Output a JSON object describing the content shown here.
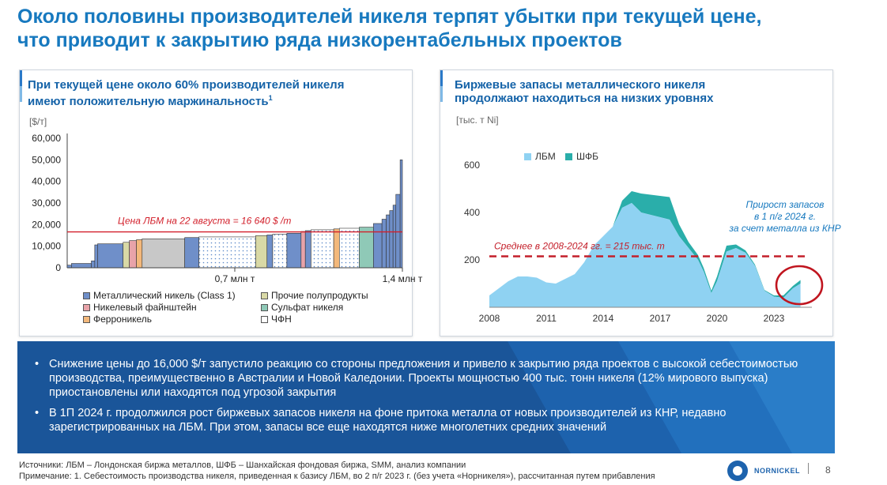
{
  "title": {
    "line1": "Около половины производителей никеля терпят убытки при текущей цене,",
    "line2": "что приводит к закрытию ряда низкорентабельных проектов"
  },
  "left_panel": {
    "title_line1": "При текущей цене около 60% производителей никеля",
    "title_line2": "имеют положительную маржинальность",
    "title_sup": "1",
    "unit": "[$/т]",
    "price_label": "Цена ЛБМ на 22 августа = 16 640 $ /т",
    "legend": [
      {
        "label": "Металлический никель (Class 1)",
        "color": "#6f8fc9"
      },
      {
        "label": "Прочие полупродукты",
        "color": "#d9d9a6"
      },
      {
        "label": "Никелевый файнштейн",
        "color": "#e8a3a9"
      },
      {
        "label": "Сульфат никеля",
        "color": "#8fc9b7"
      },
      {
        "label": "Ферроникель",
        "color": "#f3b87b"
      },
      {
        "label": "ЧФН",
        "color": "#ffffff"
      }
    ]
  },
  "right_panel": {
    "title_line1": "Биржевые запасы металлического никеля",
    "title_line2": "продолжают находиться на низких уровнях",
    "unit": "[тыс. т Ni]",
    "legend": [
      {
        "label": "ЛБМ",
        "color": "#8fd2f2"
      },
      {
        "label": "ШФБ",
        "color": "#2aaeaa"
      }
    ],
    "avg_label": "Среднее в 2008-2024 гг. = 215 тыс. т",
    "annotation": [
      "Прирост запасов",
      "в 1 п/г 2024 г.",
      "за счет металла из КНР"
    ]
  },
  "bullets": [
    "Снижение цены до 16,000 $/т запустило реакцию со стороны предложения и привело к закрытию ряда проектов с высокой себестоимостью производства, преимущественно в Австралии и Новой Каледонии. Проекты мощностью 400 тыс. тонн никеля (12% мирового выпуска) приостановлены или находятся под угрозой закрытия",
    "В 1П 2024 г. продолжился рост биржевых запасов никеля на фоне притока металла от новых производителей из КНР, недавно зарегистрированных на ЛБМ. При этом, запасы все еще находятся ниже многолетних средних значений"
  ],
  "footer": {
    "sources": "Источники: ЛБМ – Лондонская биржа металлов, ШФБ – Шанхайская фондовая биржа, SMM, анализ компании",
    "note": "Примечание: 1. Себестоимость производства никеля, приведенная к базису ЛБМ, во 2 п/г 2023 г. (без учета «Норникеля»), рассчитанная путем прибавления",
    "logo_text": "NORNICKEL",
    "page": "8"
  },
  "chart_data": [
    {
      "type": "bar",
      "subtype": "cost-curve",
      "ylim": [
        0,
        60000
      ],
      "yticks": [
        "0",
        "10,000",
        "20,000",
        "30,000",
        "40,000",
        "50,000",
        "60,000"
      ],
      "xlim_mt": [
        0,
        1.4
      ],
      "xticks": [
        {
          "v": 0.7,
          "label": "0,7 млн т"
        },
        {
          "v": 1.4,
          "label": "1,4 млн т"
        }
      ],
      "reference_line": {
        "value": 16640,
        "label": "Цена ЛБМ на 22 августа = 16 640 $ /т"
      },
      "segments": [
        {
          "w": 0.015,
          "v": 1200,
          "c": "#6f8fc9"
        },
        {
          "w": 0.07,
          "v": 2000,
          "c": "#6f8fc9"
        },
        {
          "w": 0.012,
          "v": 3200,
          "c": "#6f8fc9"
        },
        {
          "w": 0.01,
          "v": 10600,
          "c": "#6f8fc9"
        },
        {
          "w": 0.09,
          "v": 11100,
          "c": "#6f8fc9"
        },
        {
          "w": 0.022,
          "v": 11800,
          "c": "#d9d9a6"
        },
        {
          "w": 0.025,
          "v": 12600,
          "c": "#e8a3a9"
        },
        {
          "w": 0.02,
          "v": 13000,
          "c": "#f3b87b"
        },
        {
          "w": 0.15,
          "v": 13400,
          "c": "#c8c8c8"
        },
        {
          "w": 0.05,
          "v": 14000,
          "c": "#6f8fc9"
        },
        {
          "w": 0.2,
          "v": 14300,
          "c": "#ffffff"
        },
        {
          "w": 0.04,
          "v": 14900,
          "c": "#d9d9a6"
        },
        {
          "w": 0.02,
          "v": 15200,
          "c": "#6f8fc9"
        },
        {
          "w": 0.05,
          "v": 15600,
          "c": "#ffffff"
        },
        {
          "w": 0.05,
          "v": 16000,
          "c": "#6f8fc9"
        },
        {
          "w": 0.015,
          "v": 16800,
          "c": "#e8a3a9"
        },
        {
          "w": 0.02,
          "v": 17200,
          "c": "#6f8fc9"
        },
        {
          "w": 0.08,
          "v": 17600,
          "c": "#ffffff"
        },
        {
          "w": 0.02,
          "v": 18000,
          "c": "#f3b87b"
        },
        {
          "w": 0.07,
          "v": 18300,
          "c": "#ffffff"
        },
        {
          "w": 0.05,
          "v": 18800,
          "c": "#8fc9b7"
        },
        {
          "w": 0.03,
          "v": 20500,
          "c": "#6f8fc9"
        },
        {
          "w": 0.015,
          "v": 22500,
          "c": "#6f8fc9"
        },
        {
          "w": 0.012,
          "v": 24500,
          "c": "#6f8fc9"
        },
        {
          "w": 0.012,
          "v": 26500,
          "c": "#6f8fc9"
        },
        {
          "w": 0.01,
          "v": 29000,
          "c": "#6f8fc9"
        },
        {
          "w": 0.015,
          "v": 34000,
          "c": "#6f8fc9"
        },
        {
          "w": 0.008,
          "v": 50000,
          "c": "#6f8fc9"
        }
      ]
    },
    {
      "type": "area",
      "ylim": [
        0,
        600
      ],
      "yticks": [
        200,
        400,
        600
      ],
      "xlim": [
        2008,
        2025
      ],
      "xticks": [
        2008,
        2011,
        2014,
        2017,
        2020,
        2023
      ],
      "reference_line": {
        "value": 215,
        "label": "Среднее в 2008-2024 гг. = 215 тыс. т"
      },
      "series": [
        {
          "name": "ЛБМ",
          "color": "#8fd2f2",
          "x": [
            2008,
            2008.5,
            2009,
            2009.5,
            2010,
            2010.5,
            2011,
            2011.5,
            2012,
            2012.5,
            2013,
            2013.5,
            2014,
            2014.5,
            2015,
            2015.5,
            2016,
            2016.5,
            2017,
            2017.5,
            2018,
            2018.5,
            2019,
            2019.3,
            2019.7,
            2020,
            2020.5,
            2021,
            2021.5,
            2022,
            2022.5,
            2023,
            2023.5,
            2024,
            2024.4
          ],
          "y": [
            50,
            80,
            110,
            130,
            130,
            125,
            105,
            100,
            120,
            140,
            190,
            260,
            300,
            340,
            420,
            440,
            400,
            390,
            380,
            370,
            300,
            250,
            200,
            150,
            60,
            110,
            235,
            250,
            230,
            175,
            70,
            45,
            40,
            80,
            100
          ]
        },
        {
          "name": "ШФБ",
          "color": "#2aaeaa",
          "x": [
            2008,
            2014.5,
            2015,
            2015.5,
            2016,
            2016.5,
            2017,
            2017.5,
            2018,
            2018.5,
            2019,
            2019.3,
            2019.7,
            2020,
            2020.5,
            2021,
            2021.5,
            2022,
            2022.5,
            2023,
            2023.5,
            2024,
            2024.4
          ],
          "y": [
            0,
            0,
            30,
            50,
            80,
            85,
            90,
            95,
            50,
            25,
            20,
            15,
            10,
            20,
            25,
            15,
            10,
            5,
            3,
            5,
            10,
            10,
            15
          ]
        }
      ],
      "annotation": "Прирост запасов в 1 п/г 2024 г. за счет металла из КНР"
    }
  ]
}
